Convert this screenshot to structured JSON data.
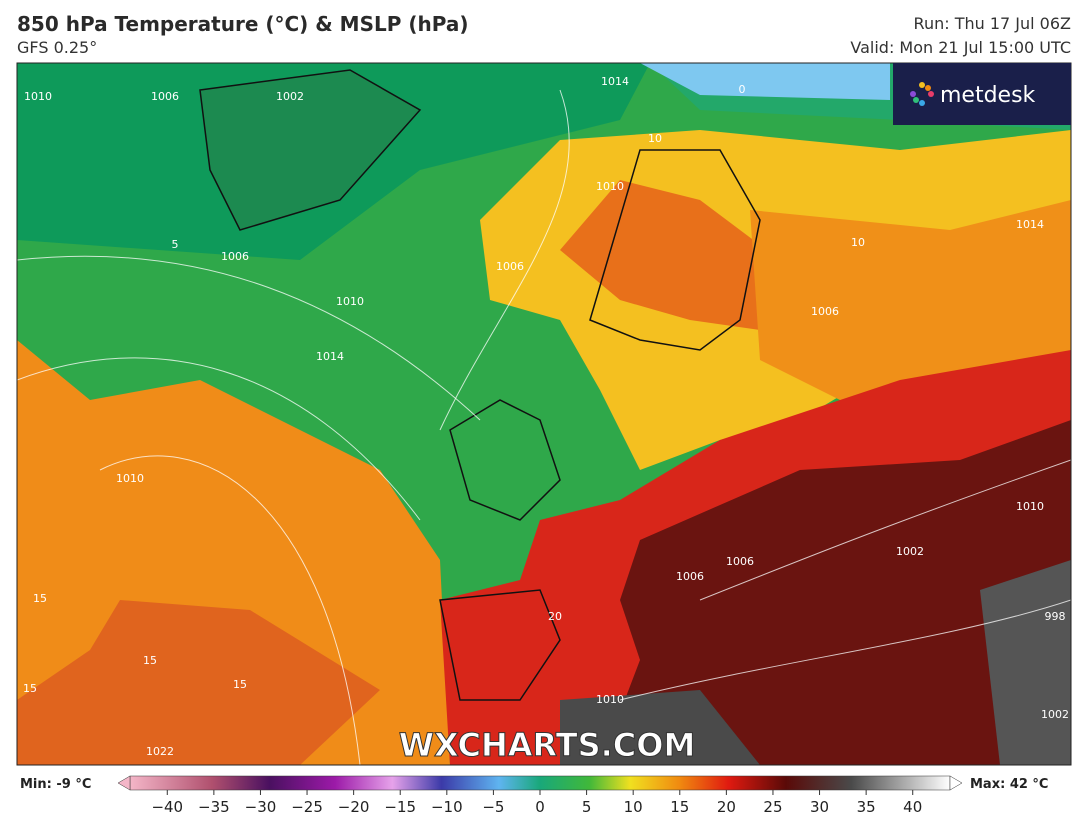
{
  "header": {
    "title": "850 hPa Temperature (°C) & MSLP (hPa)",
    "model": "GFS 0.25°",
    "run": "Run: Thu 17 Jul 06Z",
    "valid": "Valid: Mon 21 Jul 15:00 UTC"
  },
  "logo": "metdesk",
  "watermark": "WXCHARTS.COM",
  "map_labels": [
    "1010",
    "1006",
    "1002",
    "1014",
    "1006",
    "1010",
    "1014",
    "1006",
    "1010",
    "1006",
    "1010",
    "1014",
    "1006",
    "1006",
    "1002",
    "998",
    "1010",
    "1022",
    "1010",
    "1002",
    "15",
    "15",
    "15",
    "15",
    "10",
    "20",
    "10",
    "5",
    "0"
  ],
  "colorbar": {
    "min_label": "Min: -9 °C",
    "max_label": "Max: 42 °C",
    "lim": [
      -44,
      44
    ],
    "ticks": [
      {
        "value": -40,
        "label": "−40"
      },
      {
        "value": -35,
        "label": "−35"
      },
      {
        "value": -30,
        "label": "−30"
      },
      {
        "value": -25,
        "label": "−25"
      },
      {
        "value": -20,
        "label": "−20"
      },
      {
        "value": -15,
        "label": "−15"
      },
      {
        "value": -10,
        "label": "−10"
      },
      {
        "value": -5,
        "label": "−5"
      },
      0,
      5,
      10,
      15,
      20,
      25,
      30,
      35,
      40
    ]
  }
}
